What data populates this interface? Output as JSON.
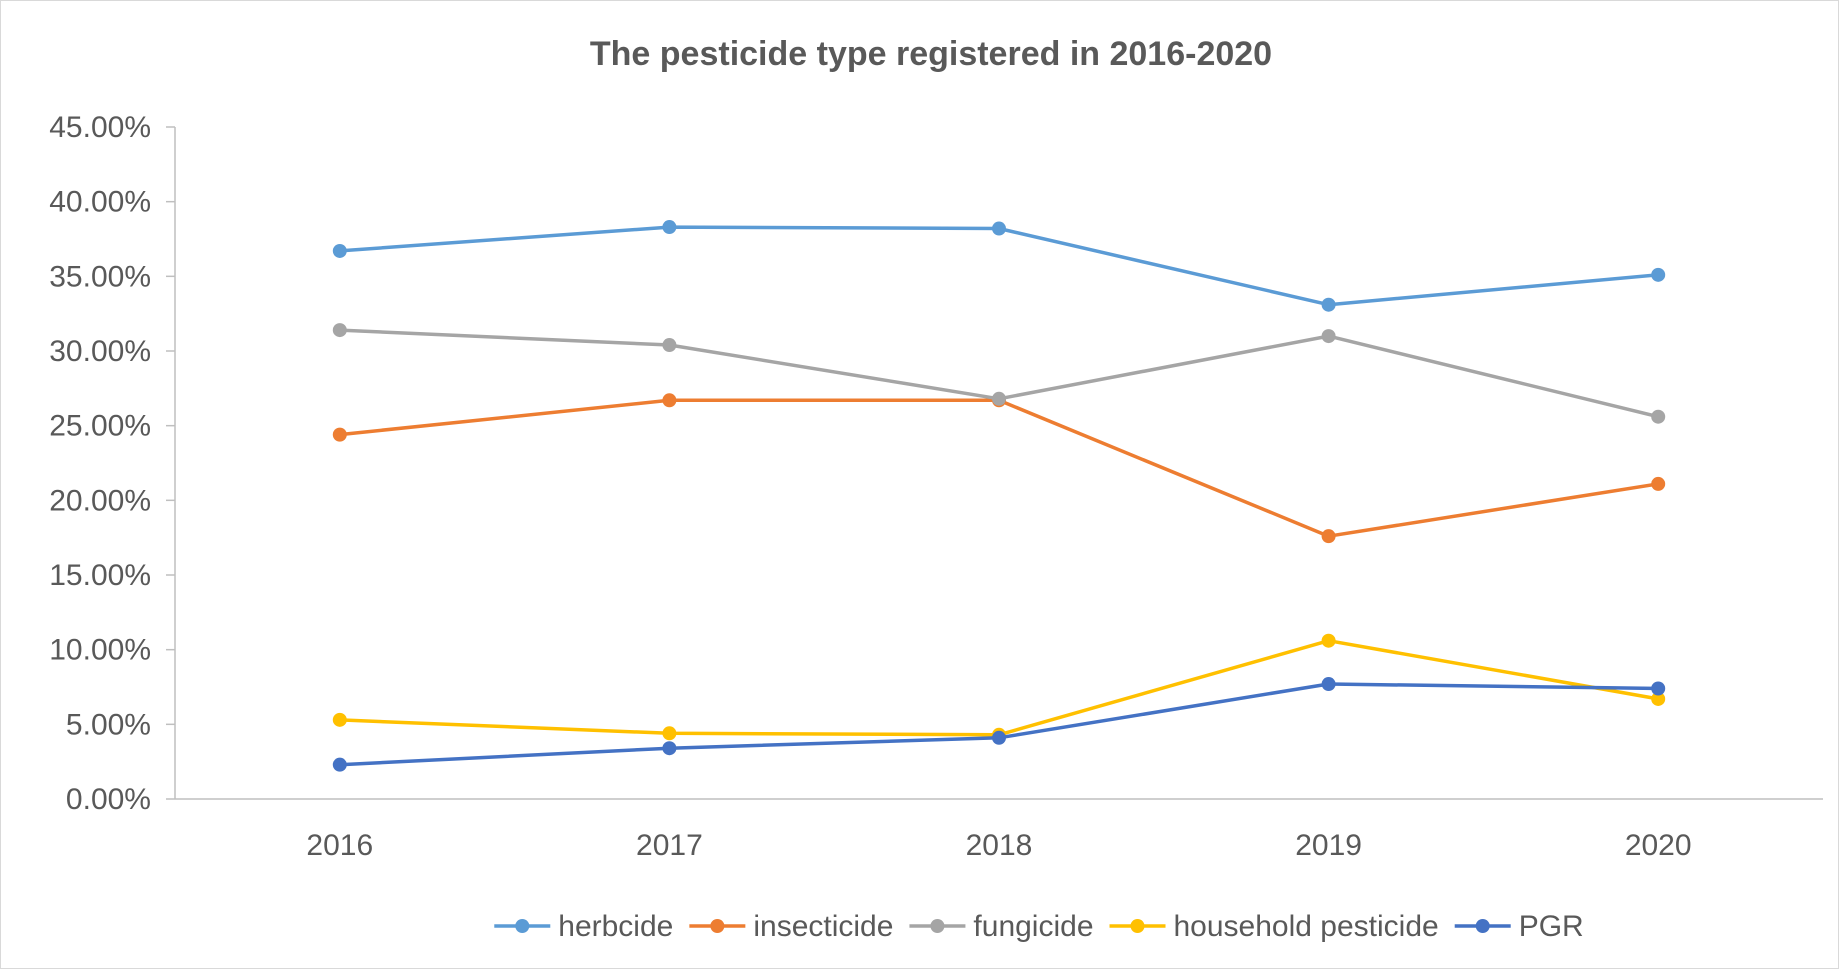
{
  "chart_data": {
    "type": "line",
    "title": "The pesticide type registered in 2016-2020",
    "xlabel": "",
    "ylabel": "",
    "categories": [
      "2016",
      "2017",
      "2018",
      "2019",
      "2020"
    ],
    "ylim": [
      0,
      0.45
    ],
    "yticks": [
      0,
      0.05,
      0.1,
      0.15,
      0.2,
      0.25,
      0.3,
      0.35,
      0.4,
      0.45
    ],
    "ytick_labels": [
      "0.00%",
      "5.00%",
      "10.00%",
      "15.00%",
      "20.00%",
      "25.00%",
      "30.00%",
      "35.00%",
      "40.00%",
      "45.00%"
    ],
    "grid": false,
    "legend_position": "bottom",
    "series": [
      {
        "name": "herbcide",
        "color": "#5b9bd5",
        "values": [
          0.367,
          0.383,
          0.382,
          0.331,
          0.351
        ]
      },
      {
        "name": "insecticide",
        "color": "#ed7d31",
        "values": [
          0.244,
          0.267,
          0.267,
          0.176,
          0.211
        ]
      },
      {
        "name": "fungicide",
        "color": "#a5a5a5",
        "values": [
          0.314,
          0.304,
          0.268,
          0.31,
          0.256
        ]
      },
      {
        "name": "household pesticide",
        "color": "#ffc000",
        "values": [
          0.053,
          0.044,
          0.043,
          0.106,
          0.067
        ]
      },
      {
        "name": "PGR",
        "color": "#4472c4",
        "values": [
          0.023,
          0.034,
          0.041,
          0.077,
          0.074
        ]
      }
    ]
  }
}
